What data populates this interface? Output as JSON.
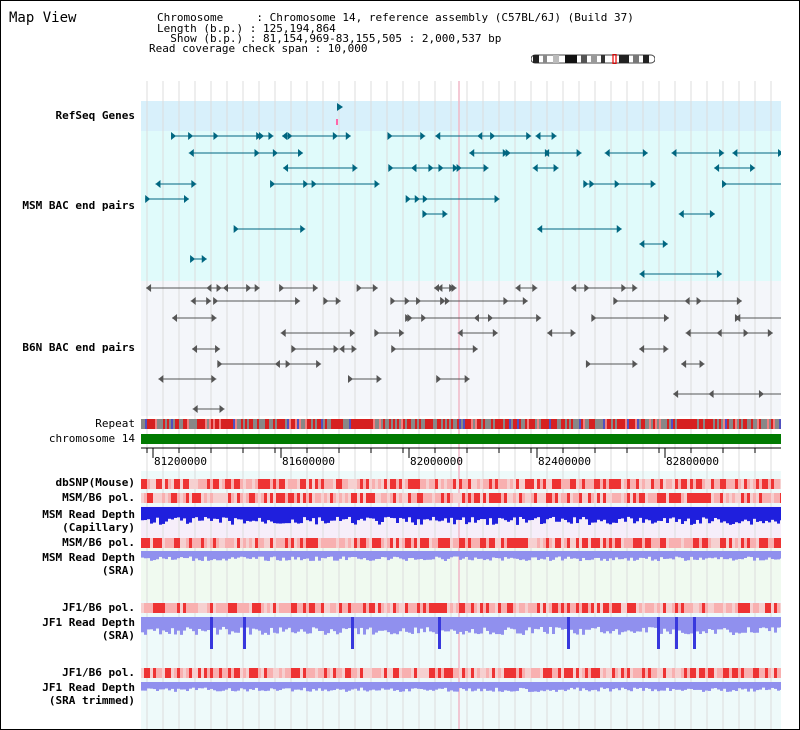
{
  "title": "Map View",
  "header": {
    "line1": "Chromosome     : Chromosome 14, reference assembly (C57BL/6J) (Build 37)",
    "line2": "Length (b.p.) : 125,194,864",
    "line3": "  Show (b.p.) : 81,154,969-83,155,505 : 2,000,537 bp",
    "line4": "Read coverage check span : 10,000"
  },
  "tracks": {
    "refseq": "RefSeq Genes",
    "msm_bac": "MSM BAC end pairs",
    "b6n_bac": "B6N BAC end pairs",
    "repeat": "Repeat",
    "chromosome": "chromosome 14",
    "dbsnp": "dbSNP(Mouse)",
    "msm_pol": "MSM/B6 pol.",
    "msm_depth_cap": "MSM Read Depth\n(Capillary)",
    "msm_pol2": "MSM/B6 pol.",
    "msm_depth_sra": "MSM Read Depth\n(SRA)",
    "jf1_pol": "JF1/B6 pol.",
    "jf1_depth_sra": "JF1 Read Depth\n(SRA)",
    "jf1_pol2": "JF1/B6 pol.",
    "jf1_depth_trim": "JF1 Read Depth\n(SRA trimmed)"
  },
  "axis": {
    "ticks": [
      "81200000",
      "81600000",
      "82000000",
      "82400000",
      "82800000"
    ]
  },
  "colors": {
    "refseq_bg": "#d8f0fb",
    "msm_bac_bg": "#e0fbfb",
    "b6n_bac_bg": "#f4f6fa",
    "msm_color": "#006680",
    "b6n_color": "#555555",
    "chromosome": "#007a00",
    "depth_blue": "#1f1fdd",
    "depth_light": "#9090ee",
    "pol_red": "#ee3333",
    "pol_pink": "#f8b0b0",
    "label_blue": "#1a1aa0",
    "label_orange": "#e89000",
    "label_teal": "#006680"
  }
}
